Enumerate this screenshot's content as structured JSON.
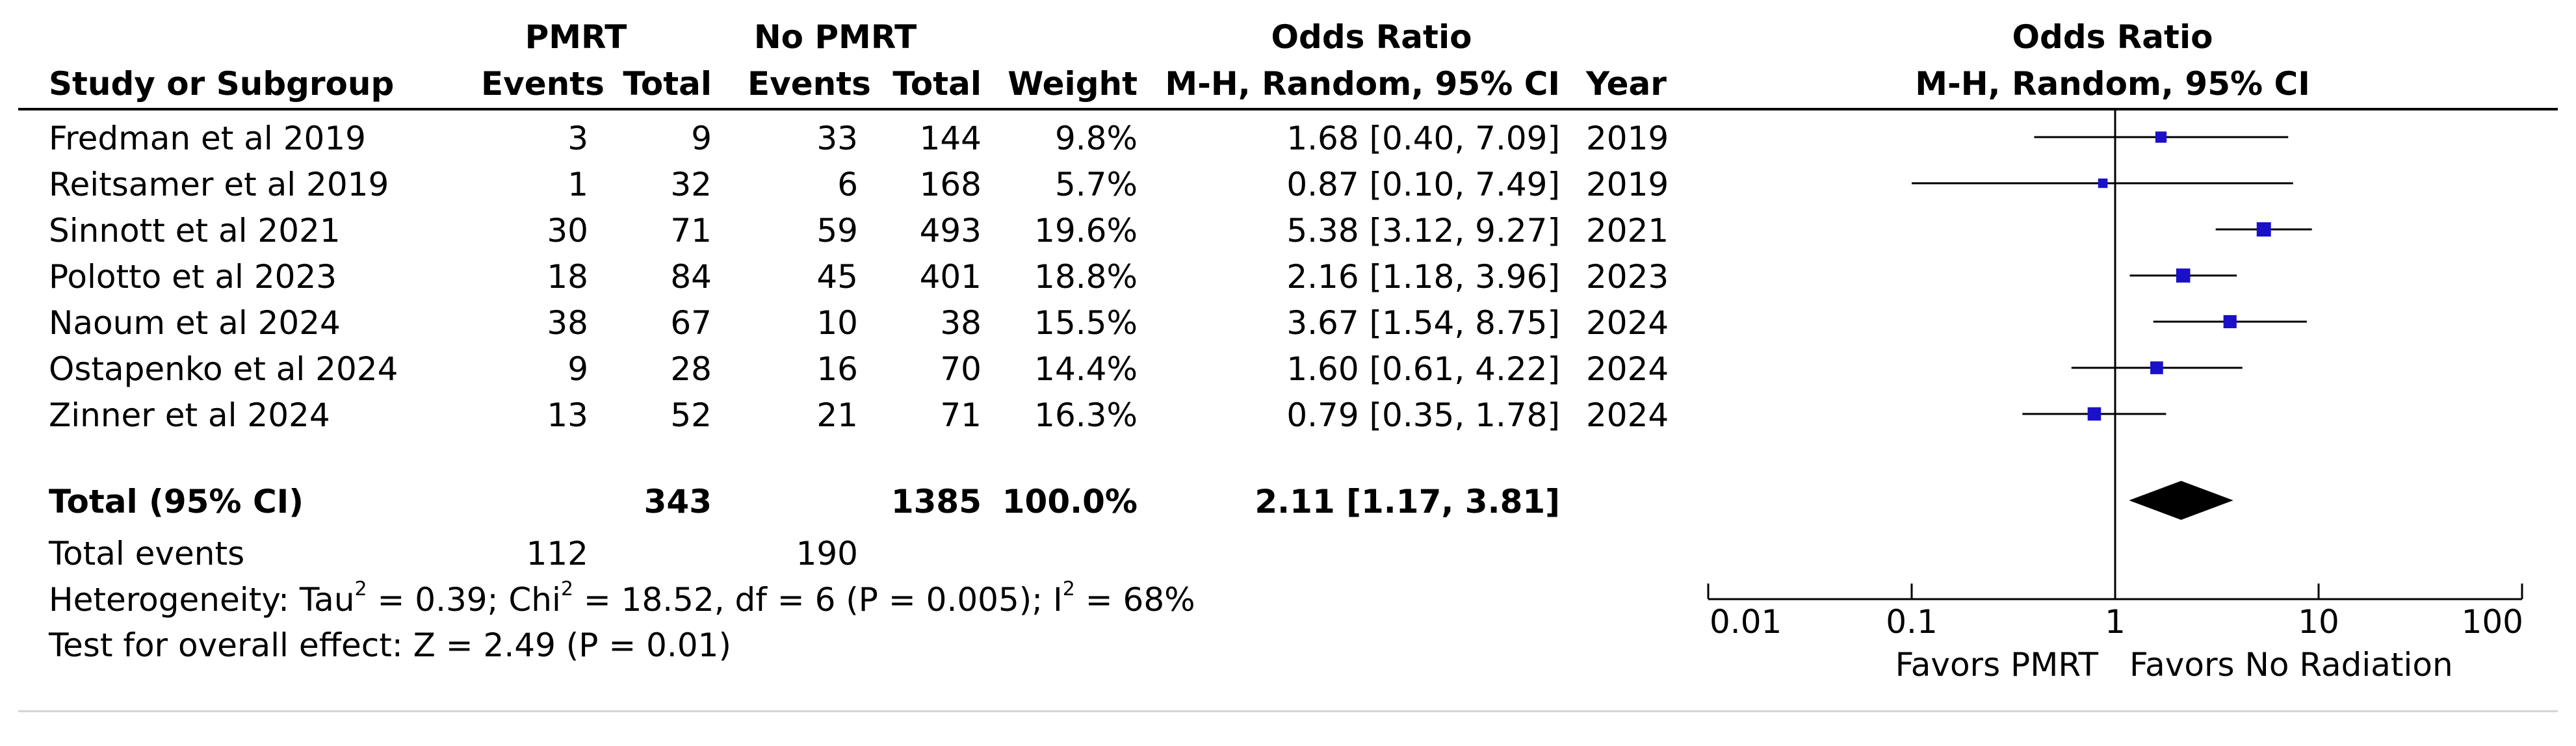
{
  "headers": {
    "group1": "PMRT",
    "group2": "No PMRT",
    "or_title_table": "Odds Ratio",
    "or_title_plot": "Odds Ratio",
    "study": "Study or Subgroup",
    "events1": "Events",
    "total1": "Total",
    "events2": "Events",
    "total2": "Total",
    "weight": "Weight",
    "method_table": "M-H, Random, 95% CI",
    "method_plot": "M-H, Random, 95% CI",
    "year": "Year"
  },
  "studies": [
    {
      "name": "Fredman et al 2019",
      "e1": "3",
      "n1": "9",
      "e2": "33",
      "n2": "144",
      "weight": "9.8%",
      "ci_text": "1.68 [0.40, 7.09]",
      "year": "2019"
    },
    {
      "name": "Reitsamer et al 2019",
      "e1": "1",
      "n1": "32",
      "e2": "6",
      "n2": "168",
      "weight": "5.7%",
      "ci_text": "0.87 [0.10, 7.49]",
      "year": "2019"
    },
    {
      "name": "Sinnott et al 2021",
      "e1": "30",
      "n1": "71",
      "e2": "59",
      "n2": "493",
      "weight": "19.6%",
      "ci_text": "5.38 [3.12, 9.27]",
      "year": "2021"
    },
    {
      "name": "Polotto et al 2023",
      "e1": "18",
      "n1": "84",
      "e2": "45",
      "n2": "401",
      "weight": "18.8%",
      "ci_text": "2.16 [1.18, 3.96]",
      "year": "2023"
    },
    {
      "name": "Naoum et al 2024",
      "e1": "38",
      "n1": "67",
      "e2": "10",
      "n2": "38",
      "weight": "15.5%",
      "ci_text": "3.67 [1.54, 8.75]",
      "year": "2024"
    },
    {
      "name": "Ostapenko et al 2024",
      "e1": "9",
      "n1": "28",
      "e2": "16",
      "n2": "70",
      "weight": "14.4%",
      "ci_text": "1.60 [0.61, 4.22]",
      "year": "2024"
    },
    {
      "name": "Zinner et al 2024",
      "e1": "13",
      "n1": "52",
      "e2": "21",
      "n2": "71",
      "weight": "16.3%",
      "ci_text": "0.79 [0.35, 1.78]",
      "year": "2024"
    }
  ],
  "total": {
    "label": "Total (95% CI)",
    "n1": "343",
    "n2": "1385",
    "weight": "100.0%",
    "ci_text": "2.11 [1.17, 3.81]",
    "events_label": "Total events",
    "e1": "112",
    "e2": "190"
  },
  "footnotes": {
    "heterogeneity": {
      "prefix": "Heterogeneity: Tau",
      "sup1": "2",
      "mid1": " = 0.39; Chi",
      "sup2": "2",
      "mid2": " = 18.52, df = 6 (P = 0.005); I",
      "sup3": "2",
      "suffix": " = 68%"
    },
    "overall": "Test for overall effect: Z = 2.49 (P = 0.01)"
  },
  "chart_data": {
    "type": "forest",
    "scale": "log",
    "xlim": [
      0.01,
      100
    ],
    "null_value": 1,
    "ticks": [
      0.01,
      0.1,
      1,
      10,
      100
    ],
    "tick_labels": [
      "0.01",
      "0.1",
      "1",
      "10",
      "100"
    ],
    "favors_left": "Favors PMRT",
    "favors_right": "Favors No Radiation",
    "marker_color": "#1a10c8",
    "points": [
      {
        "or": 1.68,
        "lo": 0.4,
        "hi": 7.09,
        "weight": 9.8
      },
      {
        "or": 0.87,
        "lo": 0.1,
        "hi": 7.49,
        "weight": 5.7
      },
      {
        "or": 5.38,
        "lo": 3.12,
        "hi": 9.27,
        "weight": 19.6
      },
      {
        "or": 2.16,
        "lo": 1.18,
        "hi": 3.96,
        "weight": 18.8
      },
      {
        "or": 3.67,
        "lo": 1.54,
        "hi": 8.75,
        "weight": 15.5
      },
      {
        "or": 1.6,
        "lo": 0.61,
        "hi": 4.22,
        "weight": 14.4
      },
      {
        "or": 0.79,
        "lo": 0.35,
        "hi": 1.78,
        "weight": 16.3
      }
    ],
    "pooled": {
      "or": 2.11,
      "lo": 1.17,
      "hi": 3.81
    }
  }
}
